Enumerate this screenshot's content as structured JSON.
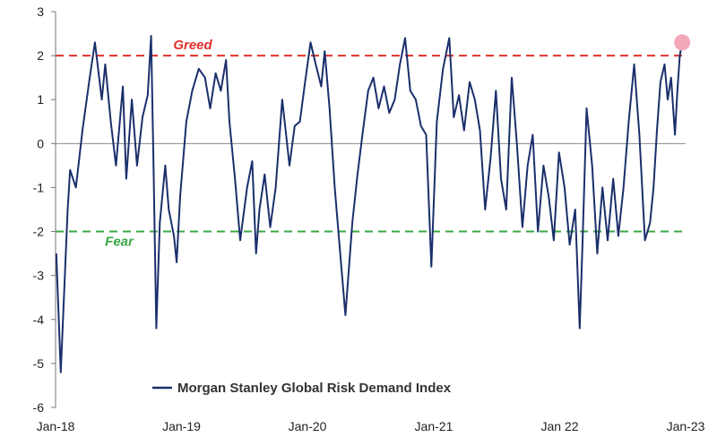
{
  "chart_data": {
    "type": "line",
    "title": "",
    "xlabel": "",
    "ylabel": "",
    "xlim": [
      "2018-01",
      "2023-01"
    ],
    "ylim": [
      -6,
      3
    ],
    "y_ticks": [
      "3",
      "2",
      "1",
      "0",
      "-1",
      "-2",
      "-3",
      "-4",
      "-5",
      "-6"
    ],
    "x_ticks": [
      "Jan-18",
      "Jan-19",
      "Jan-20",
      "Jan-21",
      "Jan 22",
      "Jan-23"
    ],
    "grid": false,
    "legend_position": "bottom-left",
    "series": [
      {
        "name": "Morgan Stanley Global Risk Demand Index",
        "color": "#1b2f6b",
        "x": [
          "2018-01-03",
          "2018-01-16",
          "2018-02-05",
          "2018-02-12",
          "2018-03-01",
          "2018-03-20",
          "2018-04-10",
          "2018-04-25",
          "2018-05-15",
          "2018-05-25",
          "2018-06-10",
          "2018-06-25",
          "2018-07-15",
          "2018-07-25",
          "2018-08-10",
          "2018-08-25",
          "2018-09-10",
          "2018-09-25",
          "2018-10-05",
          "2018-10-12",
          "2018-10-20",
          "2018-10-30",
          "2018-11-15",
          "2018-11-25",
          "2018-12-10",
          "2018-12-18",
          "2018-12-28",
          "2019-01-15",
          "2019-02-01",
          "2019-02-20",
          "2019-03-10",
          "2019-03-25",
          "2019-04-10",
          "2019-04-25",
          "2019-05-10",
          "2019-05-20",
          "2019-06-05",
          "2019-06-20",
          "2019-07-10",
          "2019-07-25",
          "2019-08-05",
          "2019-08-15",
          "2019-08-30",
          "2019-09-15",
          "2019-10-01",
          "2019-10-20",
          "2019-11-10",
          "2019-11-25",
          "2019-12-10",
          "2019-12-25",
          "2020-01-10",
          "2020-01-25",
          "2020-02-10",
          "2020-02-20",
          "2020-03-05",
          "2020-03-20",
          "2020-04-05",
          "2020-04-20",
          "2020-05-10",
          "2020-05-25",
          "2020-06-10",
          "2020-06-25",
          "2020-07-10",
          "2020-07-25",
          "2020-08-10",
          "2020-08-25",
          "2020-09-10",
          "2020-09-25",
          "2020-10-10",
          "2020-10-25",
          "2020-11-10",
          "2020-11-25",
          "2020-12-10",
          "2020-12-25",
          "2021-01-10",
          "2021-01-28",
          "2021-02-15",
          "2021-02-28",
          "2021-03-15",
          "2021-03-30",
          "2021-04-15",
          "2021-04-30",
          "2021-05-15",
          "2021-05-30",
          "2021-06-15",
          "2021-06-30",
          "2021-07-15",
          "2021-07-30",
          "2021-08-15",
          "2021-08-30",
          "2021-09-15",
          "2021-09-30",
          "2021-10-15",
          "2021-10-30",
          "2021-11-15",
          "2021-11-30",
          "2021-12-15",
          "2021-12-30",
          "2022-01-15",
          "2022-01-30",
          "2022-02-15",
          "2022-02-28",
          "2022-03-08",
          "2022-03-20",
          "2022-04-05",
          "2022-04-20",
          "2022-05-05",
          "2022-05-20",
          "2022-06-05",
          "2022-06-20",
          "2022-07-05",
          "2022-07-20",
          "2022-08-05",
          "2022-08-20",
          "2022-09-05",
          "2022-09-20",
          "2022-09-30",
          "2022-10-10",
          "2022-10-20",
          "2022-11-01",
          "2022-11-10",
          "2022-11-20",
          "2022-12-01",
          "2022-12-08",
          "2022-12-15",
          "2022-12-22"
        ],
        "values": [
          -2.5,
          -5.2,
          -1.5,
          -0.6,
          -1.0,
          0.3,
          1.5,
          2.3,
          1.0,
          1.8,
          0.5,
          -0.5,
          1.3,
          -0.8,
          1.0,
          -0.5,
          0.6,
          1.1,
          2.45,
          -0.5,
          -4.2,
          -1.8,
          -0.5,
          -1.5,
          -2.1,
          -2.7,
          -1.2,
          0.5,
          1.2,
          1.7,
          1.5,
          0.8,
          1.6,
          1.2,
          1.9,
          0.5,
          -0.8,
          -2.2,
          -1.0,
          -0.4,
          -2.5,
          -1.5,
          -0.7,
          -1.9,
          -1.0,
          1.0,
          -0.5,
          0.4,
          0.5,
          1.4,
          2.3,
          1.8,
          1.3,
          2.1,
          0.8,
          -1.0,
          -2.5,
          -3.9,
          -1.8,
          -0.7,
          0.3,
          1.2,
          1.5,
          0.8,
          1.3,
          0.7,
          1.0,
          1.8,
          2.4,
          1.2,
          1.0,
          0.4,
          0.2,
          -2.8,
          0.5,
          1.7,
          2.4,
          0.6,
          1.1,
          0.3,
          1.4,
          1.0,
          0.3,
          -1.5,
          -0.3,
          1.2,
          -0.8,
          -1.5,
          1.5,
          0.0,
          -1.9,
          -0.5,
          0.2,
          -2.0,
          -0.5,
          -1.2,
          -2.2,
          -0.2,
          -1.0,
          -2.3,
          -1.5,
          -4.2,
          -2.3,
          0.8,
          -0.5,
          -2.5,
          -1.0,
          -2.2,
          -0.8,
          -2.1,
          -1.0,
          0.5,
          1.8,
          0.2,
          -2.2,
          -1.8,
          -1.0,
          0.3,
          1.4,
          1.8,
          1.0,
          1.5,
          0.2,
          1.2,
          2.0,
          2.3
        ]
      }
    ],
    "reference_lines": [
      {
        "label": "Greed",
        "value": 2,
        "color": "#e0302a"
      },
      {
        "label": "Fear",
        "value": -2,
        "color": "#3aa845"
      }
    ],
    "highlight_point": {
      "color": "#f4a7b9"
    }
  }
}
